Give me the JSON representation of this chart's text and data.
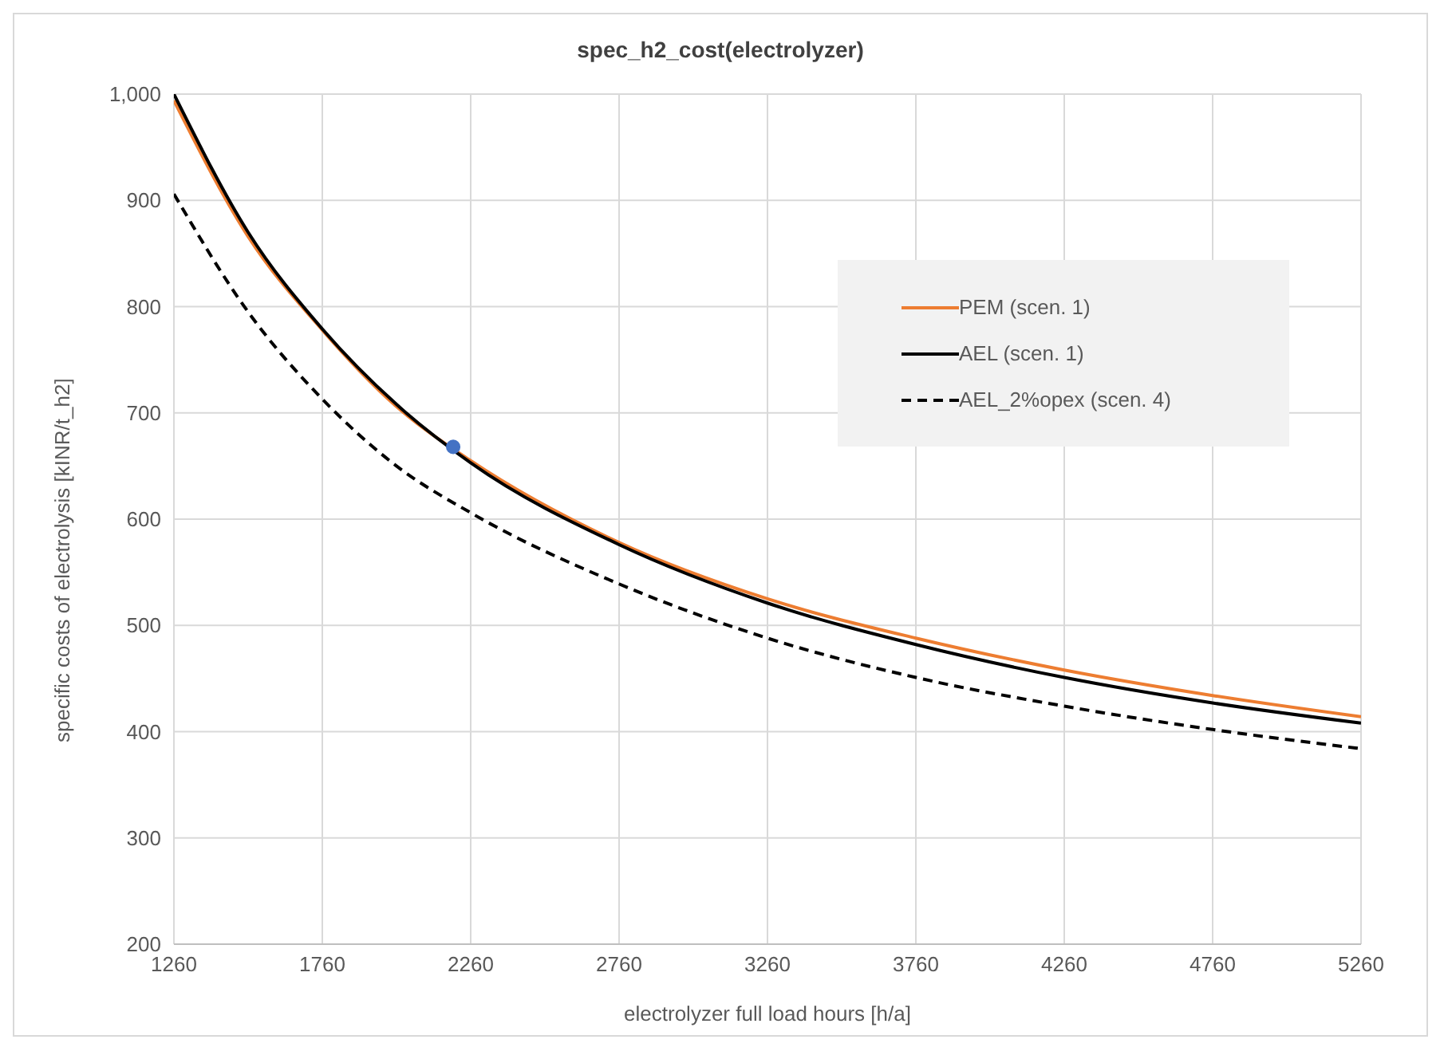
{
  "chart_data": {
    "type": "line",
    "title": "spec_h2_cost(electrolyzer)",
    "xlabel": "electrolyzer full load hours [h/a]",
    "ylabel": "specific costs of electrolysis [kINR/t_h2]",
    "x": [
      1260,
      1510,
      1760,
      2010,
      2260,
      2760,
      3260,
      3760,
      4260,
      4760,
      5260
    ],
    "series": [
      {
        "name": "PEM (scen. 1)",
        "color": "#ed7d31",
        "values": [
          994,
          866,
          778,
          706,
          655,
          578,
          525,
          488,
          458,
          434,
          414
        ]
      },
      {
        "name": "AEL (scen. 1)",
        "color": "#000000",
        "values": [
          1000,
          870,
          779,
          708,
          653,
          576,
          521,
          482,
          451,
          427,
          408
        ]
      },
      {
        "name": "AEL_2%opex (scen. 4)",
        "color": "#000000",
        "line_style": "dashed",
        "values": [
          906,
          795,
          713,
          650,
          606,
          539,
          488,
          451,
          424,
          402,
          384
        ]
      },
      {
        "type": "scatter",
        "color": "#4472c4",
        "x": [
          2201
        ],
        "values": [
          668
        ],
        "marker": "circle"
      }
    ],
    "xlim": [
      1260,
      5260
    ],
    "xticks": [
      1260,
      1760,
      2260,
      2760,
      3260,
      3760,
      4260,
      4760,
      5260
    ],
    "ylim": [
      200,
      1000
    ],
    "yticks": [
      200,
      300,
      400,
      500,
      600,
      700,
      800,
      900,
      {
        "value": 1000,
        "label": "1,000"
      }
    ],
    "grid": true,
    "legend": "right",
    "marker": "none"
  }
}
